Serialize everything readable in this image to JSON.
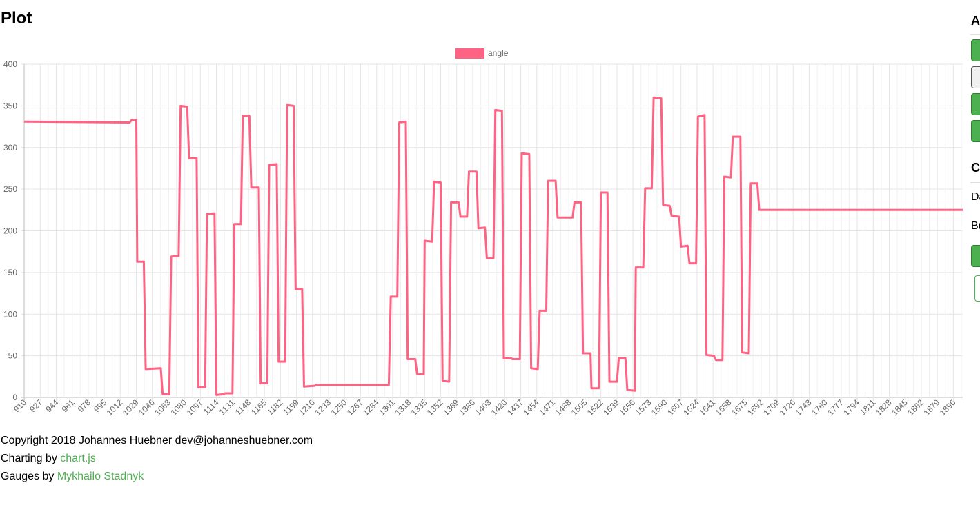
{
  "page": {
    "title": "Plot"
  },
  "footer": {
    "copyright": "Copyright 2018 Johannes Huebner dev@johanneshuebner.com",
    "charting_prefix": "Charting by ",
    "charting_link": "chart.js",
    "gauges_prefix": "Gauges by ",
    "gauges_link": "Mykhailo Stadnyk"
  },
  "side_panel": {
    "heading_1": "A",
    "heading_2": "C",
    "label_1": "Da",
    "label_2": "Bu"
  },
  "colors": {
    "series": "#ff6384",
    "link": "#4caf50",
    "button": "#4caf50"
  },
  "chart_data": {
    "type": "line",
    "title": "",
    "xlabel": "",
    "ylabel": "",
    "ylim": [
      0,
      400
    ],
    "yticks": [
      0,
      50,
      100,
      150,
      200,
      250,
      300,
      350,
      400
    ],
    "xlim": [
      910,
      1906
    ],
    "xticks": [
      910,
      927,
      944,
      961,
      978,
      995,
      1012,
      1029,
      1046,
      1063,
      1080,
      1097,
      1114,
      1131,
      1148,
      1165,
      1182,
      1199,
      1216,
      1233,
      1250,
      1267,
      1284,
      1301,
      1318,
      1335,
      1352,
      1369,
      1386,
      1403,
      1420,
      1437,
      1454,
      1471,
      1488,
      1505,
      1522,
      1539,
      1556,
      1573,
      1590,
      1607,
      1624,
      1641,
      1658,
      1675,
      1692,
      1709,
      1726,
      1743,
      1760,
      1777,
      1794,
      1811,
      1828,
      1845,
      1862,
      1879,
      1896
    ],
    "grid": true,
    "legend": "top-center",
    "series": [
      {
        "name": "angle",
        "points": [
          [
            910,
            331
          ],
          [
            1022,
            330
          ],
          [
            1024,
            333
          ],
          [
            1029,
            333
          ],
          [
            1030,
            163
          ],
          [
            1037,
            163
          ],
          [
            1039,
            34
          ],
          [
            1055,
            35
          ],
          [
            1057,
            4
          ],
          [
            1064,
            4
          ],
          [
            1066,
            169
          ],
          [
            1074,
            170
          ],
          [
            1076,
            350
          ],
          [
            1083,
            349
          ],
          [
            1085,
            287
          ],
          [
            1093,
            287
          ],
          [
            1095,
            12
          ],
          [
            1102,
            12
          ],
          [
            1104,
            220
          ],
          [
            1112,
            221
          ],
          [
            1114,
            3
          ],
          [
            1122,
            4
          ],
          [
            1123,
            5
          ],
          [
            1131,
            5
          ],
          [
            1133,
            208
          ],
          [
            1140,
            208
          ],
          [
            1142,
            338
          ],
          [
            1149,
            338
          ],
          [
            1151,
            252
          ],
          [
            1159,
            252
          ],
          [
            1161,
            17
          ],
          [
            1168,
            17
          ],
          [
            1170,
            279
          ],
          [
            1178,
            280
          ],
          [
            1180,
            43
          ],
          [
            1187,
            43
          ],
          [
            1189,
            351
          ],
          [
            1196,
            350
          ],
          [
            1198,
            130
          ],
          [
            1205,
            130
          ],
          [
            1207,
            13
          ],
          [
            1218,
            14
          ],
          [
            1220,
            15
          ],
          [
            1297,
            15
          ],
          [
            1299,
            121
          ],
          [
            1306,
            121
          ],
          [
            1308,
            330
          ],
          [
            1315,
            331
          ],
          [
            1317,
            46
          ],
          [
            1325,
            46
          ],
          [
            1327,
            28
          ],
          [
            1334,
            28
          ],
          [
            1335,
            188
          ],
          [
            1343,
            187
          ],
          [
            1345,
            259
          ],
          [
            1352,
            258
          ],
          [
            1354,
            20
          ],
          [
            1361,
            19
          ],
          [
            1363,
            234
          ],
          [
            1371,
            234
          ],
          [
            1373,
            217
          ],
          [
            1380,
            217
          ],
          [
            1382,
            271
          ],
          [
            1390,
            271
          ],
          [
            1392,
            203
          ],
          [
            1399,
            204
          ],
          [
            1401,
            167
          ],
          [
            1408,
            167
          ],
          [
            1410,
            345
          ],
          [
            1417,
            344
          ],
          [
            1419,
            47
          ],
          [
            1427,
            47
          ],
          [
            1428,
            46
          ],
          [
            1436,
            46
          ],
          [
            1438,
            293
          ],
          [
            1446,
            292
          ],
          [
            1448,
            35
          ],
          [
            1455,
            34
          ],
          [
            1457,
            104
          ],
          [
            1464,
            104
          ],
          [
            1466,
            260
          ],
          [
            1474,
            260
          ],
          [
            1476,
            216
          ],
          [
            1492,
            216
          ],
          [
            1494,
            234
          ],
          [
            1501,
            234
          ],
          [
            1503,
            53
          ],
          [
            1511,
            53
          ],
          [
            1512,
            11
          ],
          [
            1520,
            11
          ],
          [
            1522,
            246
          ],
          [
            1529,
            246
          ],
          [
            1531,
            19
          ],
          [
            1539,
            19
          ],
          [
            1541,
            47
          ],
          [
            1548,
            47
          ],
          [
            1550,
            9
          ],
          [
            1558,
            8
          ],
          [
            1559,
            156
          ],
          [
            1567,
            156
          ],
          [
            1569,
            251
          ],
          [
            1576,
            251
          ],
          [
            1578,
            360
          ],
          [
            1586,
            359
          ],
          [
            1588,
            231
          ],
          [
            1595,
            230
          ],
          [
            1597,
            218
          ],
          [
            1605,
            217
          ],
          [
            1607,
            181
          ],
          [
            1614,
            182
          ],
          [
            1616,
            161
          ],
          [
            1623,
            161
          ],
          [
            1625,
            337
          ],
          [
            1632,
            339
          ],
          [
            1634,
            51
          ],
          [
            1642,
            50
          ],
          [
            1644,
            45
          ],
          [
            1651,
            45
          ],
          [
            1653,
            265
          ],
          [
            1660,
            264
          ],
          [
            1662,
            313
          ],
          [
            1670,
            313
          ],
          [
            1672,
            54
          ],
          [
            1679,
            53
          ],
          [
            1681,
            257
          ],
          [
            1688,
            257
          ],
          [
            1690,
            225
          ],
          [
            1906,
            225
          ]
        ]
      }
    ]
  }
}
